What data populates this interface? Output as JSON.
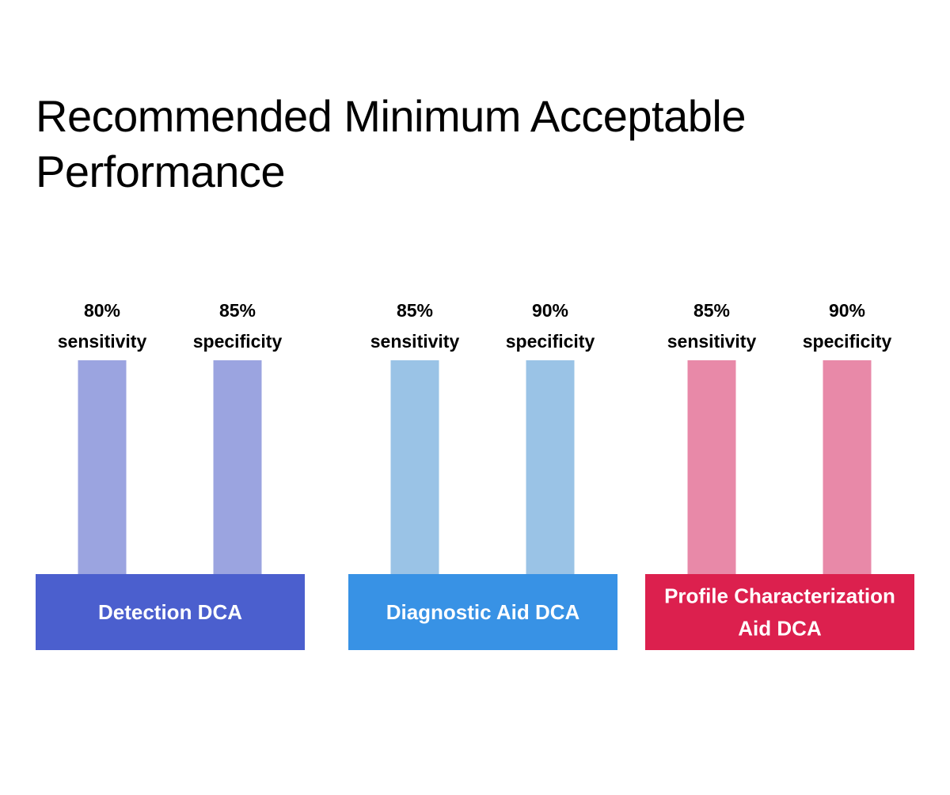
{
  "title_lines": [
    "Recommended Minimum Acceptable",
    "Performance"
  ],
  "chart_data": {
    "type": "bar",
    "title": "Recommended Minimum Acceptable Performance",
    "xlabel": "",
    "ylabel": "",
    "categories": [
      "Detection DCA",
      "Diagnostic Aid DCA",
      "Profile Characterization Aid DCA"
    ],
    "groups": [
      {
        "name": "Detection DCA",
        "label_lines": [
          "Detection DCA"
        ],
        "base_color": "#4B5FCE",
        "bar_color": "#9BA4E0",
        "bars": [
          {
            "metric": "sensitivity",
            "value": 80,
            "label_value": "80%"
          },
          {
            "metric": "specificity",
            "value": 85,
            "label_value": "85%"
          }
        ]
      },
      {
        "name": "Diagnostic Aid DCA",
        "label_lines": [
          "Diagnostic Aid DCA"
        ],
        "base_color": "#3892E5",
        "bar_color": "#9AC3E6",
        "bars": [
          {
            "metric": "sensitivity",
            "value": 85,
            "label_value": "85%"
          },
          {
            "metric": "specificity",
            "value": 90,
            "label_value": "90%"
          }
        ]
      },
      {
        "name": "Profile Characterization Aid DCA",
        "label_lines": [
          "Profile Characterization",
          "Aid DCA"
        ],
        "base_color": "#DC204E",
        "bar_color": "#E889A8",
        "bars": [
          {
            "metric": "sensitivity",
            "value": 85,
            "label_value": "85%"
          },
          {
            "metric": "specificity",
            "value": 90,
            "label_value": "90%"
          }
        ]
      }
    ]
  }
}
